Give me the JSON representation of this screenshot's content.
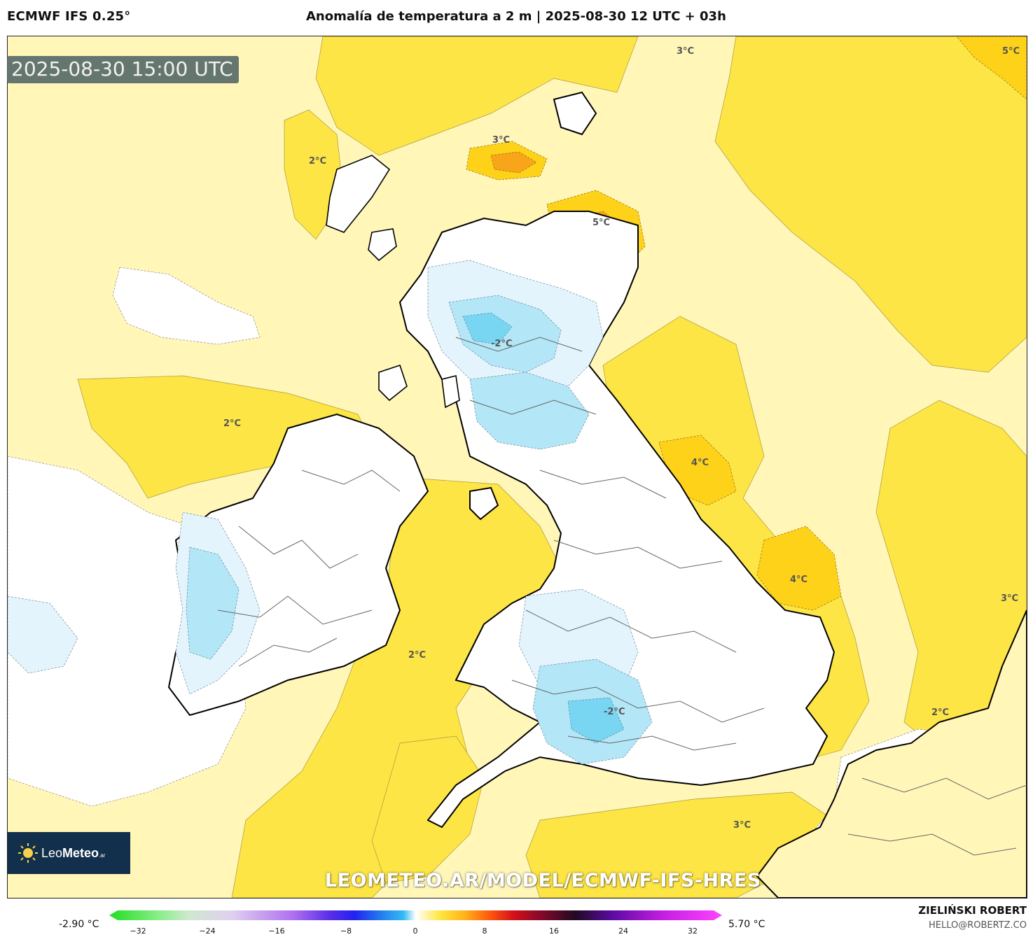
{
  "header": {
    "model": "ECMWF IFS 0.25°",
    "title": "Anomalía de temperatura a 2 m | 2025-08-30 12 UTC + 03h"
  },
  "map": {
    "valid_time": "2025-08-30 15:00 UTC",
    "watermark": "LEOMETEO.AR/MODEL/ECMWF-IFS-HRES",
    "contour_labels": [
      "3°C",
      "5°C",
      "2°C",
      "3°C",
      "5°C",
      "-2°C",
      "2°C",
      "4°C",
      "4°C",
      "3°C",
      "2°C",
      "2°C",
      "-2°C",
      "3°C"
    ],
    "colors": {
      "pale_yellow": "#fff6b8",
      "yellow": "#fde545",
      "gold": "#ffd21a",
      "orange": "#f9a51a",
      "white": "#ffffff",
      "pale_blue": "#e3f4fc",
      "light_blue": "#b3e6f7",
      "blue": "#78d6f3",
      "coast": "#000000",
      "borders": "#555555"
    }
  },
  "logo": {
    "brand_light": "Leo",
    "brand_bold": "Meteo",
    "suffix": ".ar",
    "icon": "sun-icon"
  },
  "legend": {
    "min_label": "-2.90 °C",
    "max_label": "5.70 °C",
    "ticks": [
      "−32",
      "−24",
      "−16",
      "−8",
      "0",
      "8",
      "16",
      "24",
      "32"
    ]
  },
  "credits": {
    "author": "ZIELIŃSKI ROBERT",
    "email": "HELLO@ROBERTZ.CO"
  }
}
